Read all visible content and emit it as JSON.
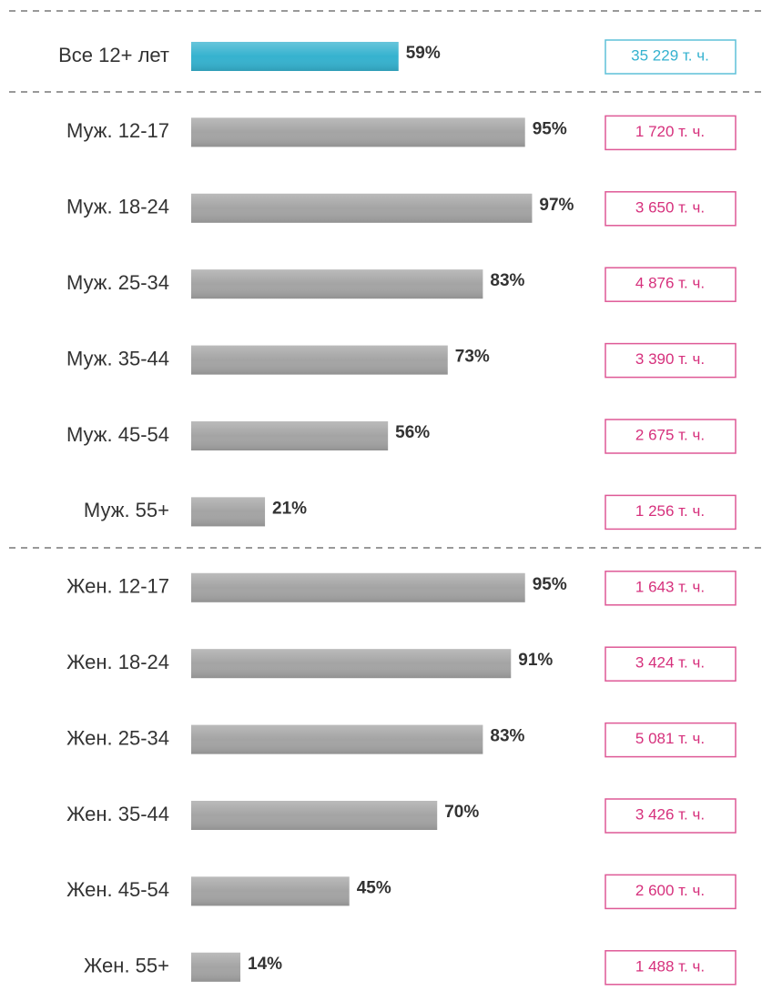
{
  "chart_data": {
    "type": "hbar",
    "categories": [
      "Все 12+ лет",
      "Муж. 12-17",
      "Муж. 18-24",
      "Муж. 25-34",
      "Муж. 35-44",
      "Муж. 45-54",
      "Муж. 55+",
      "Жен. 12-17",
      "Жен. 18-24",
      "Жен. 25-34",
      "Жен. 35-44",
      "Жен. 45-54",
      "Жен. 55+"
    ],
    "values": [
      59,
      95,
      97,
      83,
      73,
      56,
      21,
      95,
      91,
      83,
      70,
      45,
      14
    ],
    "value_labels": [
      "59%",
      "95%",
      "97%",
      "83%",
      "73%",
      "56%",
      "21%",
      "95%",
      "91%",
      "83%",
      "70%",
      "45%",
      "14%"
    ],
    "totals": [
      "35 229 т. ч.",
      "1 720 т. ч.",
      "3 650 т. ч.",
      "4 876 т. ч.",
      "3 390 т. ч.",
      "2 675 т. ч.",
      "1 256 т. ч.",
      "1 643 т. ч.",
      "3 424 т. ч.",
      "5 081 т. ч.",
      "3 426 т. ч.",
      "2 600 т. ч.",
      "1 488 т. ч."
    ],
    "colors": [
      "#35b2cf",
      "#a4a4a4",
      "#a4a4a4",
      "#a4a4a4",
      "#a4a4a4",
      "#a4a4a4",
      "#a4a4a4",
      "#a4a4a4",
      "#a4a4a4",
      "#a4a4a4",
      "#a4a4a4",
      "#a4a4a4",
      "#a4a4a4"
    ],
    "total_colors": [
      "#35b2cf",
      "#d6307c",
      "#d6307c",
      "#d6307c",
      "#d6307c",
      "#d6307c",
      "#d6307c",
      "#d6307c",
      "#d6307c",
      "#d6307c",
      "#d6307c",
      "#d6307c",
      "#d6307c"
    ],
    "xlim": [
      0,
      100
    ]
  }
}
